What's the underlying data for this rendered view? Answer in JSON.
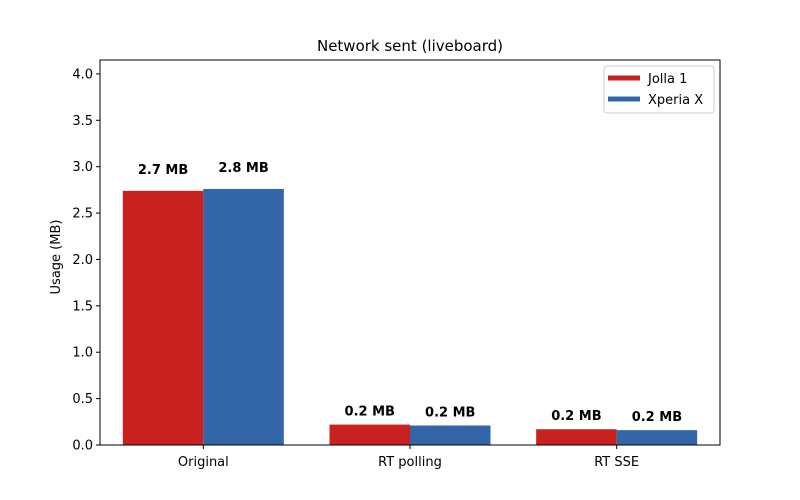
{
  "chart_data": {
    "type": "bar",
    "title": "Network sent (liveboard)",
    "xlabel": "",
    "ylabel": "Usage (MB)",
    "ylim": [
      0,
      4.15
    ],
    "yticks": [
      "0.0",
      "0.5",
      "1.0",
      "1.5",
      "2.0",
      "2.5",
      "3.0",
      "3.5",
      "4.0"
    ],
    "categories": [
      "Original",
      "RT polling",
      "RT SSE"
    ],
    "series": [
      {
        "name": "Jolla 1",
        "color": "#c8211f",
        "values": [
          2.74,
          0.22,
          0.17
        ],
        "labels": [
          "2.7 MB",
          "0.2 MB",
          "0.2 MB"
        ]
      },
      {
        "name": "Xperia X",
        "color": "#3366a8",
        "values": [
          2.76,
          0.21,
          0.16
        ],
        "labels": [
          "2.8 MB",
          "0.2 MB",
          "0.2 MB"
        ]
      }
    ],
    "legend": "top-right",
    "grid": false
  }
}
